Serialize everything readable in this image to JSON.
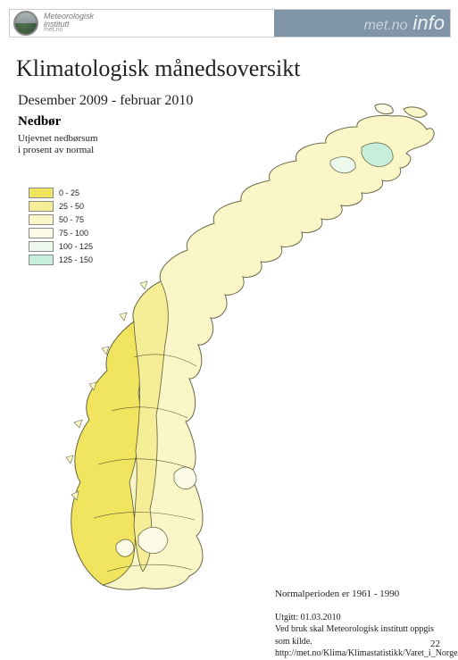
{
  "header": {
    "org_line1": "Meteorologisk",
    "org_line2": "institutt",
    "org_url": "met.no",
    "brand_site": "met.no",
    "brand_info": "info"
  },
  "title": "Klimatologisk månedsoversikt",
  "period": "Desember 2009 - februar 2010",
  "map": {
    "heading": "Nedbør",
    "subheading_l1": "Utjevnet nedbørsum",
    "subheading_l2": "i prosent av normal",
    "type": "choropleth-map",
    "region": "Norway",
    "variable": "precipitation_percent_of_normal",
    "legend": [
      {
        "label": "0 - 25",
        "color": "#f1e55f"
      },
      {
        "label": "25 - 50",
        "color": "#f6ee97"
      },
      {
        "label": "50 - 75",
        "color": "#faf6c7"
      },
      {
        "label": "75 - 100",
        "color": "#fcfbe6"
      },
      {
        "label": "100 - 125",
        "color": "#eef9ee"
      },
      {
        "label": "125 - 150",
        "color": "#c7eedb"
      }
    ],
    "outline_color": "#6a6a4a",
    "contour_color": "#5a5a3a",
    "sea_color": "#ffffff"
  },
  "footer": {
    "normal_period": "Normalperioden er 1961 - 1990",
    "issued": "Utgitt: 01.03.2010",
    "attribution": "Ved bruk skal Meteorologisk institutt oppgis som kilde.",
    "url": "http://met.no/Klima/Klimastatistikk/Varet_i_Norge/"
  },
  "page_number": "22"
}
